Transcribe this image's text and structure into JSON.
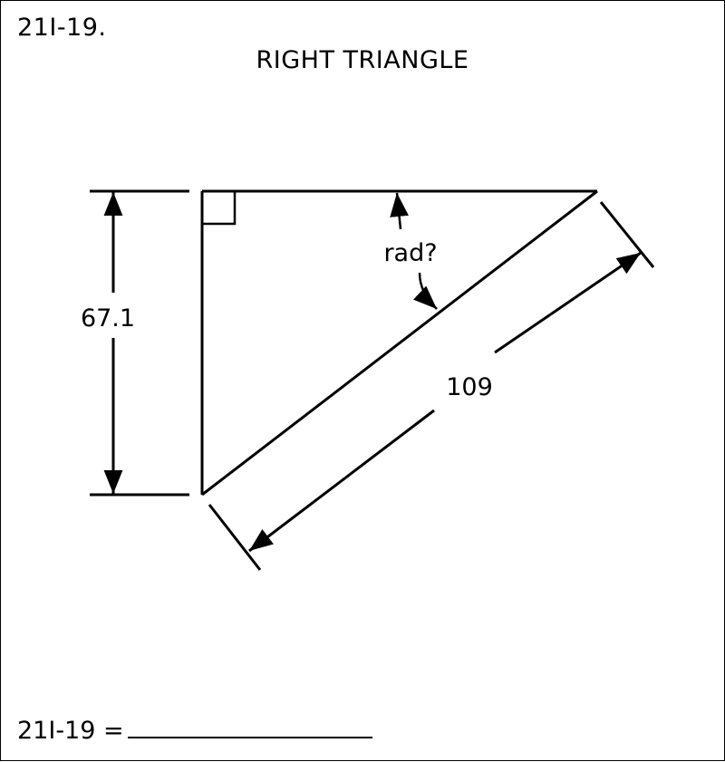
{
  "header": {
    "problem_id": "21I-19.",
    "title": "RIGHT TRIANGLE"
  },
  "diagram": {
    "shape": "right triangle",
    "height_label": "67.1",
    "hypotenuse_label": "109",
    "angle_label": "rad?"
  },
  "answer": {
    "prompt": "21I-19 ="
  }
}
